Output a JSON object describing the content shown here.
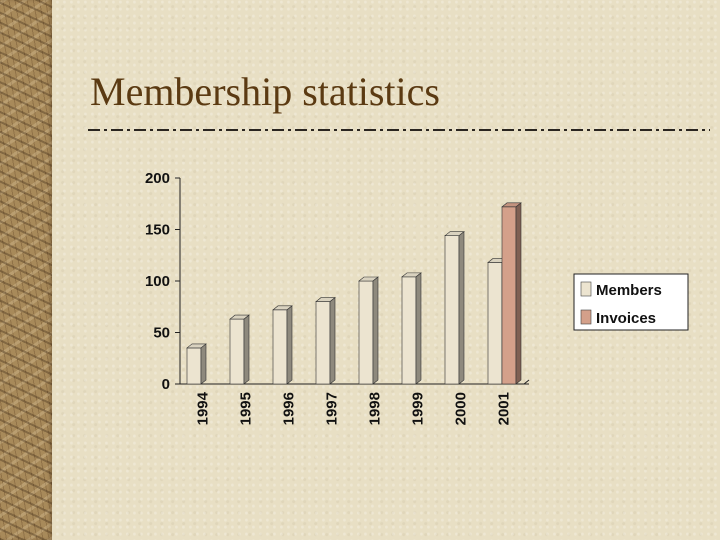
{
  "slide": {
    "title": "Membership statistics"
  },
  "chart_data": {
    "type": "bar",
    "categories": [
      "1994",
      "1995",
      "1996",
      "1997",
      "1998",
      "1999",
      "2000",
      "2001"
    ],
    "series": [
      {
        "name": "Members",
        "color": "#ece4d0",
        "values": [
          35,
          63,
          72,
          80,
          100,
          104,
          144,
          118
        ]
      },
      {
        "name": "Invoices",
        "color": "#d4a08a",
        "values": [
          null,
          null,
          null,
          null,
          null,
          null,
          null,
          172
        ]
      }
    ],
    "ylim": [
      0,
      200
    ],
    "yticks": [
      0,
      50,
      100,
      150,
      200
    ],
    "legend_position": "right",
    "grid": false,
    "bar_style": "3d"
  }
}
